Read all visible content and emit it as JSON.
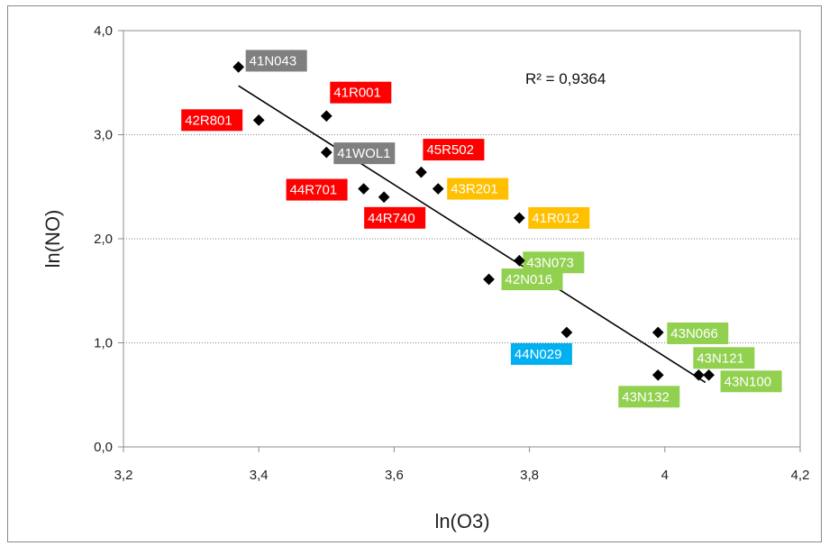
{
  "chart_data": {
    "type": "scatter",
    "xlabel": "ln(O3)",
    "ylabel": "ln(NO)",
    "xlim": [
      3.2,
      4.2
    ],
    "ylim": [
      0.0,
      4.0
    ],
    "x_ticks": [
      "3,2",
      "3,4",
      "3,6",
      "3,8",
      "4",
      "4,2"
    ],
    "y_ticks": [
      "0,0",
      "1,0",
      "2,0",
      "3,0",
      "4,0"
    ],
    "grid": "horizontal dotted",
    "annotation": "R² = 0,9364",
    "trendline": {
      "x1": 3.37,
      "y1": 3.47,
      "x2": 4.06,
      "y2": 0.62
    },
    "label_colors": {
      "gray": "#7f7f7f",
      "red": "#ff0000",
      "orange": "#ffc000",
      "green": "#92d050",
      "blue": "#00b0f0"
    },
    "points": [
      {
        "x": 3.37,
        "y": 3.65,
        "label": "41N043",
        "color": "gray"
      },
      {
        "x": 3.4,
        "y": 3.14,
        "label": "42R801",
        "color": "red"
      },
      {
        "x": 3.5,
        "y": 3.18,
        "label": "41R001",
        "color": "red"
      },
      {
        "x": 3.5,
        "y": 2.83,
        "label": "41WOL1",
        "color": "gray"
      },
      {
        "x": 3.64,
        "y": 2.64,
        "label": "45R502",
        "color": "red"
      },
      {
        "x": 3.555,
        "y": 2.48,
        "label": "44R701",
        "color": "red"
      },
      {
        "x": 3.585,
        "y": 2.4,
        "label": "44R740",
        "color": "red"
      },
      {
        "x": 3.665,
        "y": 2.48,
        "label": "43R201",
        "color": "orange"
      },
      {
        "x": 3.785,
        "y": 2.2,
        "label": "41R012",
        "color": "orange"
      },
      {
        "x": 3.785,
        "y": 1.79,
        "label": "43N073",
        "color": "green"
      },
      {
        "x": 3.74,
        "y": 1.61,
        "label": "42N016",
        "color": "green"
      },
      {
        "x": 3.855,
        "y": 1.1,
        "label": "44N029",
        "color": "blue"
      },
      {
        "x": 3.99,
        "y": 1.1,
        "label": "43N066",
        "color": "green"
      },
      {
        "x": 4.05,
        "y": 0.69,
        "label": "43N121",
        "color": "green"
      },
      {
        "x": 4.065,
        "y": 0.69,
        "label": "43N100",
        "color": "green"
      },
      {
        "x": 3.99,
        "y": 0.69,
        "label": "43N132",
        "color": "green"
      }
    ]
  }
}
